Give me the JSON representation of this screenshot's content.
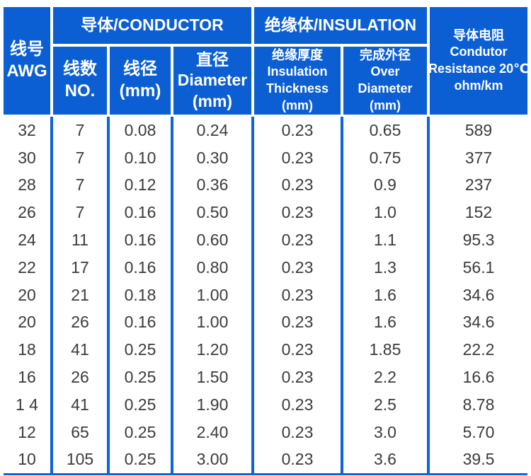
{
  "colors": {
    "header_blue": "#0b5fd3",
    "separator_blue": "#0e63da",
    "data_text": "#3b3b3b",
    "header_text": "#ffffff"
  },
  "table": {
    "group_headers": {
      "conductor": "导体/CONDUCTOR",
      "insulation": "绝缘体/INSULATION"
    },
    "columns": {
      "awg": {
        "line1": "线号",
        "line2": "AWG"
      },
      "no": {
        "line1": "线数",
        "line2": "NO."
      },
      "wire_diameter": {
        "line1": "线径",
        "line2": "(mm)"
      },
      "diameter": {
        "line1": "直径",
        "line2": "Diameter",
        "line3": "(mm)"
      },
      "insulation_thickness": {
        "line1": "绝缘厚度",
        "line2": "Insulation",
        "line3": "Thickness",
        "line4": "(mm)"
      },
      "over_diameter": {
        "line1": "完成外径",
        "line2": "Over",
        "line3": "Diameter",
        "line4": "(mm)"
      },
      "resistance": {
        "line1": "导体电阻",
        "line2": "Condutor",
        "line3": "Resistance 20℃",
        "line4": "ohm/km"
      }
    },
    "rows": [
      [
        "32",
        "7",
        "0.08",
        "0.24",
        "0.23",
        "0.65",
        "589"
      ],
      [
        "30",
        "7",
        "0.10",
        "0.30",
        "0.23",
        "0.75",
        "377"
      ],
      [
        "28",
        "7",
        "0.12",
        "0.36",
        "0.23",
        "0.9",
        "237"
      ],
      [
        "26",
        "7",
        "0.16",
        "0.50",
        "0.23",
        "1.0",
        "152"
      ],
      [
        "24",
        "11",
        "0.16",
        "0.60",
        "0.23",
        "1.1",
        "95.3"
      ],
      [
        "22",
        "17",
        "0.16",
        "0.80",
        "0.23",
        "1.3",
        "56.1"
      ],
      [
        "20",
        "21",
        "0.18",
        "1.00",
        "0.23",
        "1.6",
        "34.6"
      ],
      [
        "20",
        "26",
        "0.16",
        "1.00",
        "0.23",
        "1.6",
        "34.6"
      ],
      [
        "18",
        "41",
        "0.25",
        "1.20",
        "0.23",
        "1.85",
        "22.2"
      ],
      [
        "16",
        "26",
        "0.25",
        "1.50",
        "0.23",
        "2.2",
        "16.6"
      ],
      [
        "1 4",
        "41",
        "0.25",
        "1.90",
        "0.23",
        "2.5",
        "8.78"
      ],
      [
        "12",
        "65",
        "0.25",
        "2.40",
        "0.23",
        "3.0",
        "5.70"
      ],
      [
        "10",
        "105",
        "0.25",
        "3.00",
        "0.23",
        "3.6",
        "39.5"
      ]
    ]
  }
}
